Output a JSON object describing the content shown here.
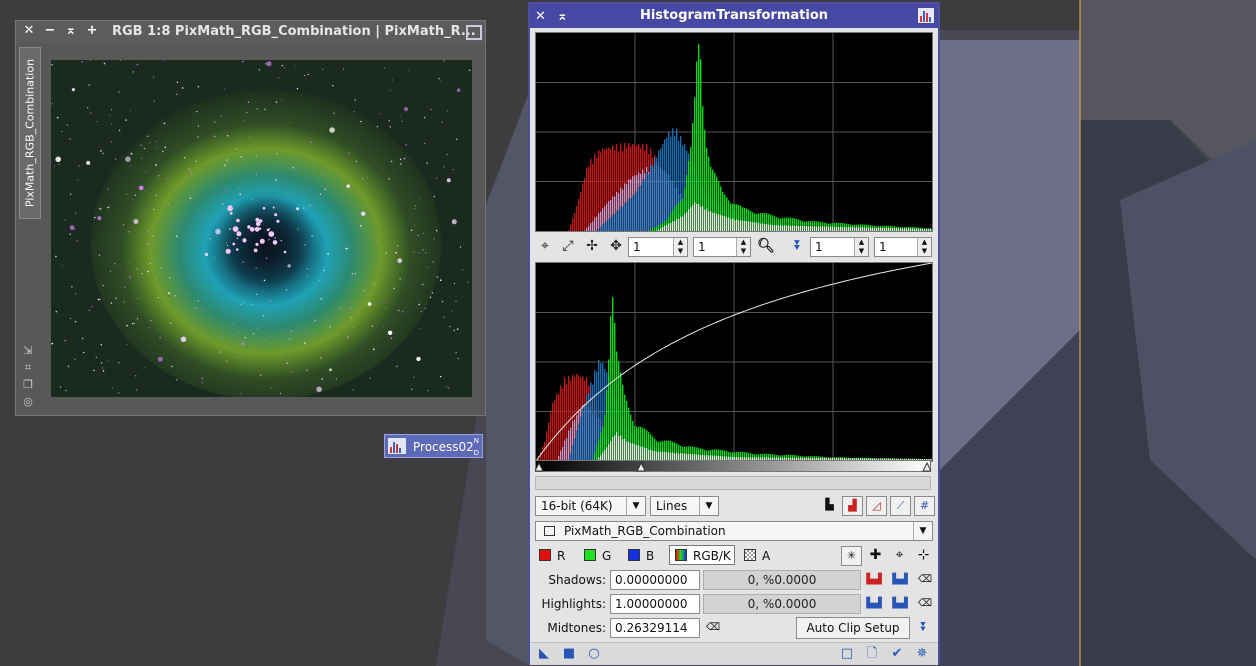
{
  "image_window": {
    "title": "RGB 1:8 PixMath_RGB_Combination | PixMath_R...",
    "tab_label": "PixMath_RGB_Combination"
  },
  "process_icon": {
    "label": "Process02",
    "nd_top": "N",
    "nd_bottom": "D"
  },
  "histogram_window": {
    "title": "HistogramTransformation",
    "zoom_x_upper": "1",
    "zoom_y_upper": "1",
    "zoom_x_lower": "1",
    "zoom_y_lower": "1",
    "resolution": "16-bit (64K)",
    "graph_style": "Lines",
    "view": "PixMath_RGB_Combination",
    "channels": [
      {
        "label": "R",
        "color": "#e01010"
      },
      {
        "label": "G",
        "color": "#20e020"
      },
      {
        "label": "B",
        "color": "#1030e0"
      },
      {
        "label": "RGB/K",
        "color": "#888888"
      },
      {
        "label": "A",
        "color": "#ffffff"
      }
    ],
    "shadows_label": "Shadows:",
    "shadows_value": "0.00000000",
    "shadows_clip": "0, %0.0000",
    "highlights_label": "Highlights:",
    "highlights_value": "1.00000000",
    "highlights_clip": "0, %0.0000",
    "midtones_label": "Midtones:",
    "midtones_value": "0.26329114",
    "auto_clip_label": "Auto Clip Setup"
  },
  "colors": {
    "process_window_titlebar": "#4549a3",
    "image_window_frame": "#585858",
    "desktop": "#3d3d3f"
  },
  "histogram": {
    "upper": {
      "red": [
        [
          0.08,
          0
        ],
        [
          0.1,
          0.12
        ],
        [
          0.13,
          0.35
        ],
        [
          0.16,
          0.42
        ],
        [
          0.2,
          0.44
        ],
        [
          0.24,
          0.45
        ],
        [
          0.28,
          0.44
        ],
        [
          0.31,
          0.35
        ],
        [
          0.34,
          0.2
        ],
        [
          0.37,
          0.1
        ],
        [
          0.4,
          0.04
        ],
        [
          0.45,
          0.01
        ],
        [
          0.5,
          0
        ]
      ],
      "magenta": [
        [
          0.12,
          0
        ],
        [
          0.18,
          0.15
        ],
        [
          0.24,
          0.28
        ],
        [
          0.3,
          0.35
        ],
        [
          0.33,
          0.3
        ],
        [
          0.36,
          0.2
        ],
        [
          0.4,
          0.1
        ],
        [
          0.45,
          0.03
        ],
        [
          0.5,
          0
        ]
      ],
      "blue": [
        [
          0.15,
          0
        ],
        [
          0.25,
          0.2
        ],
        [
          0.3,
          0.38
        ],
        [
          0.33,
          0.5
        ],
        [
          0.35,
          0.53
        ],
        [
          0.38,
          0.42
        ],
        [
          0.42,
          0.22
        ],
        [
          0.48,
          0.1
        ],
        [
          0.55,
          0.05
        ],
        [
          0.7,
          0.02
        ],
        [
          1,
          0.01
        ]
      ],
      "green": [
        [
          0.28,
          0
        ],
        [
          0.33,
          0.06
        ],
        [
          0.37,
          0.2
        ],
        [
          0.39,
          0.45
        ],
        [
          0.4,
          0.7
        ],
        [
          0.405,
          0.9
        ],
        [
          0.41,
          0.98
        ],
        [
          0.415,
          0.9
        ],
        [
          0.42,
          0.65
        ],
        [
          0.44,
          0.35
        ],
        [
          0.47,
          0.2
        ],
        [
          0.52,
          0.12
        ],
        [
          0.6,
          0.08
        ],
        [
          0.7,
          0.05
        ],
        [
          0.85,
          0.03
        ],
        [
          1,
          0.015
        ]
      ],
      "white": [
        [
          0.3,
          0
        ],
        [
          0.37,
          0.08
        ],
        [
          0.4,
          0.15
        ],
        [
          0.44,
          0.1
        ],
        [
          0.5,
          0.06
        ],
        [
          0.6,
          0.03
        ],
        [
          1,
          0.01
        ]
      ]
    },
    "lower": {
      "red": [
        [
          0.0,
          0
        ],
        [
          0.02,
          0.1
        ],
        [
          0.04,
          0.3
        ],
        [
          0.07,
          0.42
        ],
        [
          0.1,
          0.45
        ],
        [
          0.13,
          0.42
        ],
        [
          0.15,
          0.3
        ],
        [
          0.18,
          0.12
        ],
        [
          0.22,
          0.03
        ],
        [
          0.26,
          0
        ]
      ],
      "magenta": [
        [
          0.05,
          0
        ],
        [
          0.09,
          0.2
        ],
        [
          0.12,
          0.3
        ],
        [
          0.15,
          0.25
        ],
        [
          0.18,
          0.1
        ],
        [
          0.22,
          0.02
        ],
        [
          0.25,
          0
        ]
      ],
      "blue": [
        [
          0.08,
          0
        ],
        [
          0.12,
          0.3
        ],
        [
          0.15,
          0.48
        ],
        [
          0.16,
          0.53
        ],
        [
          0.18,
          0.45
        ],
        [
          0.21,
          0.25
        ],
        [
          0.26,
          0.1
        ],
        [
          0.35,
          0.04
        ],
        [
          0.6,
          0.015
        ],
        [
          1,
          0.01
        ]
      ],
      "green": [
        [
          0.14,
          0
        ],
        [
          0.17,
          0.2
        ],
        [
          0.18,
          0.5
        ],
        [
          0.185,
          0.8
        ],
        [
          0.19,
          0.98
        ],
        [
          0.195,
          0.85
        ],
        [
          0.2,
          0.6
        ],
        [
          0.22,
          0.35
        ],
        [
          0.25,
          0.2
        ],
        [
          0.3,
          0.12
        ],
        [
          0.4,
          0.07
        ],
        [
          0.55,
          0.04
        ],
        [
          0.75,
          0.02
        ],
        [
          1,
          0.01
        ]
      ],
      "white": [
        [
          0.15,
          0
        ],
        [
          0.18,
          0.08
        ],
        [
          0.2,
          0.15
        ],
        [
          0.23,
          0.1
        ],
        [
          0.3,
          0.05
        ],
        [
          0.5,
          0.02
        ],
        [
          1,
          0.01
        ]
      ]
    },
    "midtones_balance": 0.26329114
  }
}
